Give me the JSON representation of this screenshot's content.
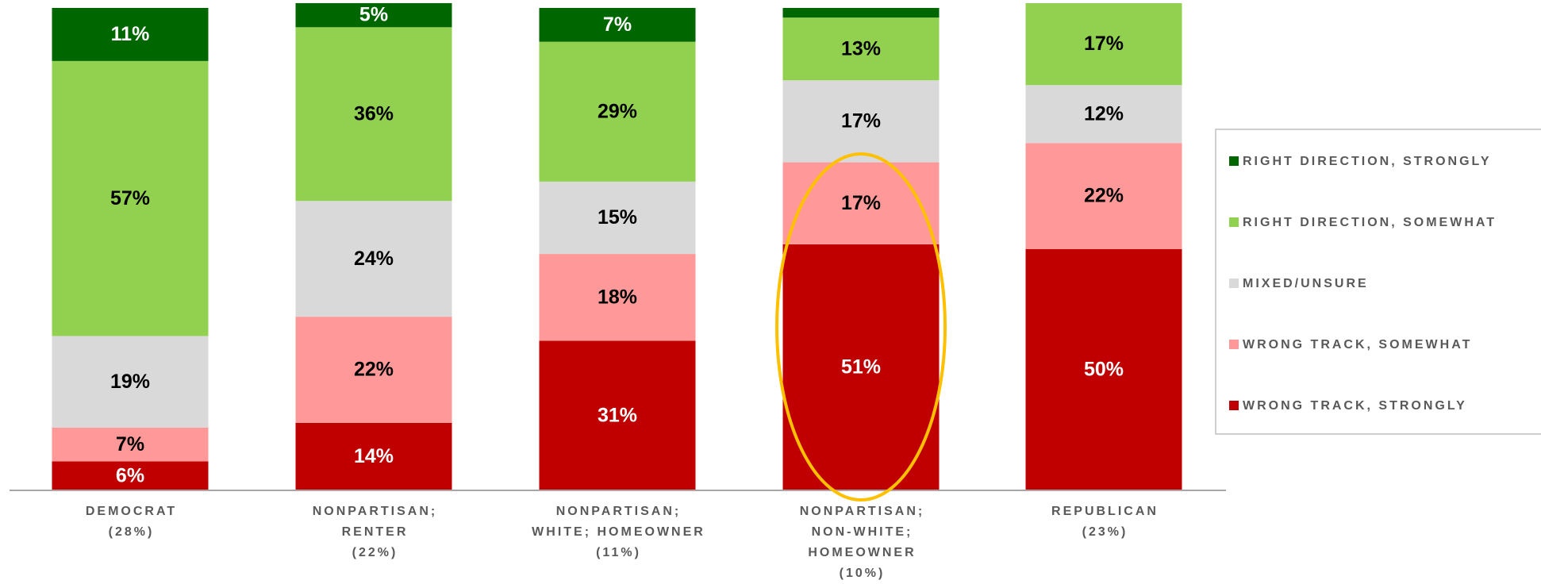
{
  "chart_data": {
    "type": "stacked_bar",
    "categories": [
      [
        "DEMOCRAT",
        "(28%)"
      ],
      [
        "NONPARTISAN;",
        "RENTER",
        "(22%)"
      ],
      [
        "NONPARTISAN;",
        "WHITE; HOMEOWNER",
        "(11%)"
      ],
      [
        "NONPARTISAN;",
        "NON-WHITE;",
        "HOMEOWNER",
        "(10%)"
      ],
      [
        "REPUBLICAN",
        "(23%)"
      ]
    ],
    "ylim": [
      0,
      100
    ],
    "legend": "right",
    "series": [
      {
        "name": "WRONG TRACK, STRONGLY",
        "color": "#c00000",
        "label_color": "#ffffff",
        "values": [
          6,
          14,
          31,
          51,
          50
        ],
        "value_labels": [
          "6%",
          "14%",
          "31%",
          "51%",
          "50%"
        ]
      },
      {
        "name": "WRONG TRACK, SOMEWHAT",
        "color": "#ff9999",
        "label_color": "#000000",
        "values": [
          7,
          22,
          18,
          17,
          22
        ],
        "value_labels": [
          "7%",
          "22%",
          "18%",
          "17%",
          "22%"
        ]
      },
      {
        "name": "MIXED/UNSURE",
        "color": "#d9d9d9",
        "label_color": "#000000",
        "values": [
          19,
          24,
          15,
          17,
          12
        ],
        "value_labels": [
          "19%",
          "24%",
          "15%",
          "17%",
          "12%"
        ]
      },
      {
        "name": "RIGHT DIRECTION, SOMEWHAT",
        "color": "#92d050",
        "label_color": "#000000",
        "values": [
          57,
          36,
          29,
          13,
          17
        ],
        "value_labels": [
          "57%",
          "36%",
          "29%",
          "13%",
          "17%"
        ]
      },
      {
        "name": "RIGHT DIRECTION, STRONGLY",
        "color": "#006600",
        "label_color": "#ffffff",
        "values": [
          11,
          5,
          7,
          2,
          0
        ],
        "value_labels": [
          "11%",
          "5%",
          "7%",
          null,
          null
        ]
      }
    ]
  }
}
